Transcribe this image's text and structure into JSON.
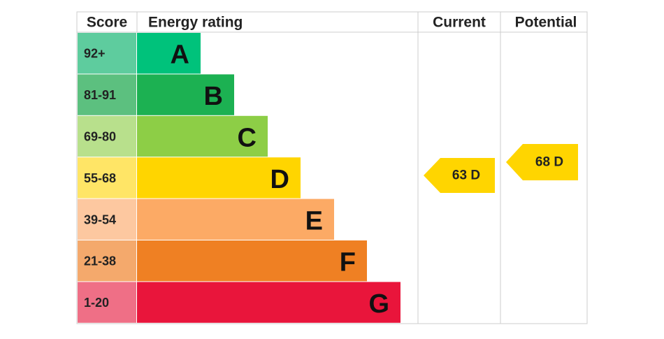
{
  "header": {
    "score": "Score",
    "rating": "Energy rating",
    "current": "Current",
    "potential": "Potential"
  },
  "bands": [
    {
      "score": "92+",
      "letter": "A",
      "color": "#00c27b",
      "score_color": "#5ecc9e"
    },
    {
      "score": "81-91",
      "letter": "B",
      "color": "#1cb152",
      "score_color": "#5cc07f"
    },
    {
      "score": "69-80",
      "letter": "C",
      "color": "#8dce46",
      "score_color": "#b8e08c"
    },
    {
      "score": "55-68",
      "letter": "D",
      "color": "#ffd500",
      "score_color": "#ffe566"
    },
    {
      "score": "39-54",
      "letter": "E",
      "color": "#fcaa65",
      "score_color": "#fdc8a0"
    },
    {
      "score": "21-38",
      "letter": "F",
      "color": "#ef8023",
      "score_color": "#f4a96c"
    },
    {
      "score": "1-20",
      "letter": "G",
      "color": "#e9153b",
      "score_color": "#ef6f86"
    }
  ],
  "current": {
    "label": "63 D",
    "color": "#ffd500"
  },
  "potential": {
    "label": "68 D",
    "color": "#ffd500"
  }
}
